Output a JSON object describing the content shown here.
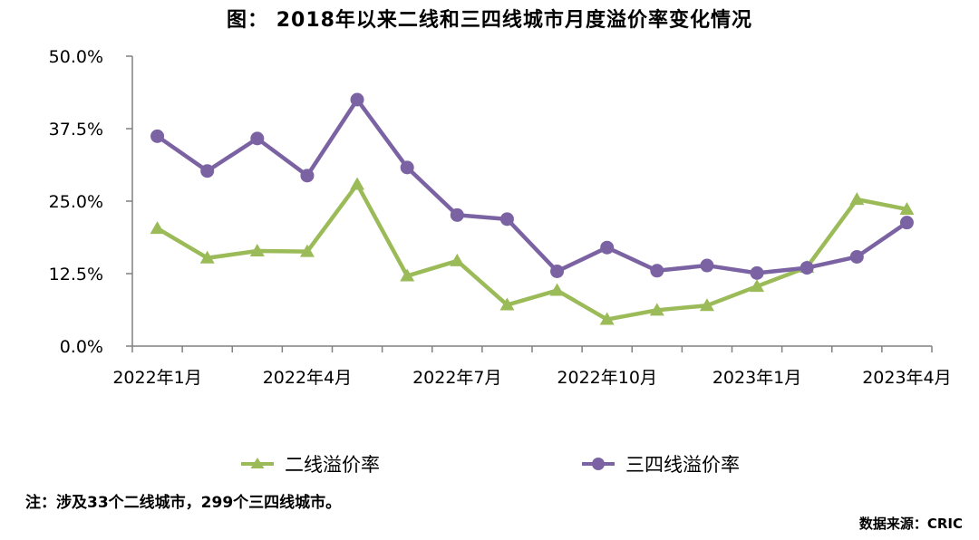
{
  "title": "图： 2018年以来二线和三四线城市月度溢价率变化情况",
  "note": "注：涉及33个二线城市，299个三四线城市。",
  "source": "数据来源：CRIC",
  "legend": {
    "series_1": "二线溢价率",
    "series_2": "三四线溢价率"
  },
  "colors": {
    "series_1": "#9bbb59",
    "series_2": "#7b63a3",
    "axis": "#808080"
  },
  "chart_data": {
    "type": "line",
    "x": [
      "2022年1月",
      "2022年2月",
      "2022年3月",
      "2022年4月",
      "2022年5月",
      "2022年6月",
      "2022年7月",
      "2022年8月",
      "2022年9月",
      "2022年10月",
      "2022年11月",
      "2022年12月",
      "2023年1月",
      "2023年2月",
      "2023年3月",
      "2023年4月"
    ],
    "x_tick_labels": [
      "2022年1月",
      "2022年4月",
      "2022年7月",
      "2022年10月",
      "2023年1月",
      "2023年4月"
    ],
    "y_tick_labels": [
      "0.0%",
      "12.5%",
      "25.0%",
      "37.5%",
      "50.0%"
    ],
    "ylim": [
      0,
      50
    ],
    "y_unit": "%",
    "grid": false,
    "legend_position": "bottom",
    "series": [
      {
        "name": "二线溢价率",
        "marker": "triangle",
        "values": [
          20.3,
          15.2,
          16.4,
          16.3,
          27.9,
          12.1,
          14.7,
          7.1,
          9.6,
          4.6,
          6.2,
          7.0,
          10.3,
          13.6,
          25.3,
          23.6
        ]
      },
      {
        "name": "三四线溢价率",
        "marker": "circle",
        "values": [
          36.2,
          30.2,
          35.8,
          29.4,
          42.5,
          30.8,
          22.6,
          21.9,
          12.9,
          17.0,
          13.0,
          13.9,
          12.6,
          13.5,
          15.4,
          21.3
        ]
      }
    ]
  }
}
